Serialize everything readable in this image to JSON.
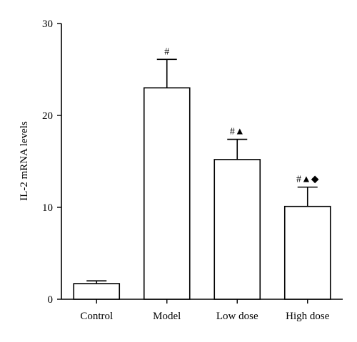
{
  "chart_data": {
    "type": "bar",
    "categories": [
      "Control",
      "Model",
      "Low dose",
      "High dose"
    ],
    "values": [
      1.7,
      23.0,
      15.2,
      10.1
    ],
    "errors": [
      0.3,
      3.1,
      2.2,
      2.1
    ],
    "annotations": [
      "",
      "#",
      "#▲",
      "#▲◆"
    ],
    "ylabel": "IL-2 mRNA levels",
    "xlabel": "",
    "title": "",
    "ylim": [
      0,
      30
    ],
    "yticks": [
      0,
      10,
      20,
      30
    ],
    "grid": false
  }
}
